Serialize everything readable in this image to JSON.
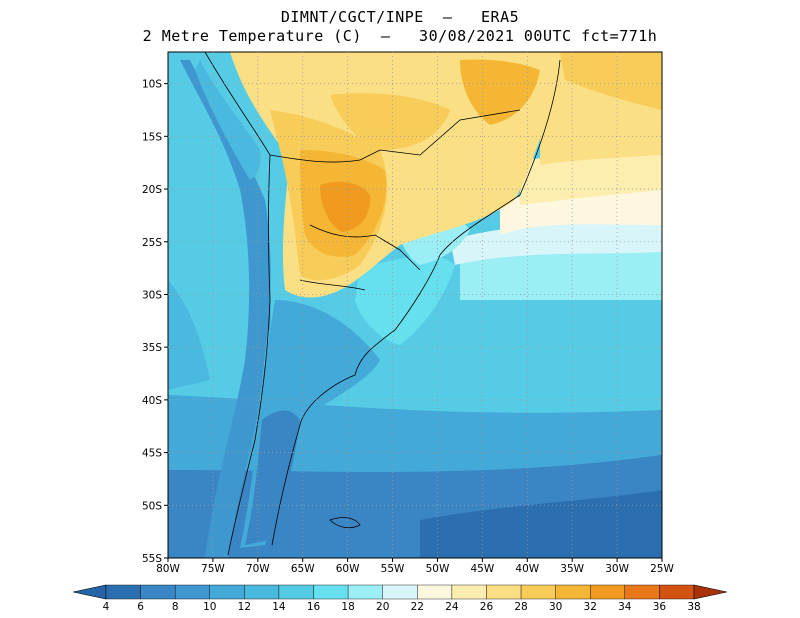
{
  "title_line1": "DIMNT/CGCT/INPE  –   ERA5",
  "title_line2": "2 Metre Temperature (C)  –   30/08/2021 00UTC fct=771h",
  "map": {
    "lon_ticks": [
      "80W",
      "75W",
      "70W",
      "65W",
      "60W",
      "55W",
      "50W",
      "45W",
      "40W",
      "35W",
      "30W",
      "25W"
    ],
    "lat_ticks": [
      "10S",
      "15S",
      "20S",
      "25S",
      "30S",
      "35S",
      "40S",
      "45S",
      "50S",
      "55S"
    ],
    "lon_range": [
      -80,
      -25
    ],
    "lat_range": [
      -55,
      -7
    ],
    "grid": "dotted"
  },
  "colorbar": {
    "labels": [
      "4",
      "6",
      "8",
      "10",
      "12",
      "14",
      "16",
      "18",
      "20",
      "22",
      "24",
      "26",
      "28",
      "30",
      "32",
      "34",
      "36",
      "38"
    ],
    "colors": [
      "#2c6fb0",
      "#3a86c4",
      "#3f97cf",
      "#43a9d8",
      "#4ab9df",
      "#55cbe6",
      "#66dfee",
      "#9ceef5",
      "#d8f6fa",
      "#fdf7e0",
      "#fdeeb0",
      "#fbdf85",
      "#f8cc58",
      "#f5b635",
      "#f19a20",
      "#e8781a",
      "#d25212",
      "#b33a0c"
    ],
    "left_arrow_color": "#2564a6",
    "right_arrow_color": "#a8330a"
  }
}
